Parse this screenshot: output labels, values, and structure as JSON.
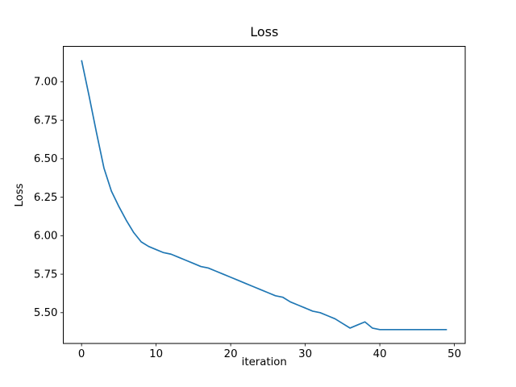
{
  "figure": {
    "background": "#ffffff",
    "spine_color": "#000000"
  },
  "chart_data": {
    "type": "line",
    "title": "Loss",
    "xlabel": "iteration",
    "ylabel": "Loss",
    "line_color": "#1f77b4",
    "grid": false,
    "x": [
      0,
      1,
      2,
      3,
      4,
      5,
      6,
      7,
      8,
      9,
      10,
      11,
      12,
      13,
      14,
      15,
      16,
      17,
      18,
      19,
      20,
      21,
      22,
      23,
      24,
      25,
      26,
      27,
      28,
      29,
      30,
      31,
      32,
      33,
      34,
      35,
      36,
      37,
      38,
      39,
      40,
      41,
      42,
      43,
      44,
      45,
      46,
      47,
      48,
      49
    ],
    "values": [
      7.14,
      6.91,
      6.67,
      6.44,
      6.29,
      6.19,
      6.1,
      6.02,
      5.96,
      5.93,
      5.91,
      5.89,
      5.88,
      5.86,
      5.84,
      5.82,
      5.8,
      5.79,
      5.77,
      5.75,
      5.73,
      5.71,
      5.69,
      5.67,
      5.65,
      5.63,
      5.61,
      5.6,
      5.57,
      5.55,
      5.53,
      5.51,
      5.5,
      5.48,
      5.46,
      5.43,
      5.4,
      5.42,
      5.44,
      5.4,
      5.39,
      5.39,
      5.39,
      5.39,
      5.39,
      5.39,
      5.39,
      5.39,
      5.39,
      5.39
    ],
    "xlim": [
      -2.45,
      51.45
    ],
    "ylim": [
      5.3,
      7.23
    ],
    "xticks": [
      {
        "value": 0,
        "label": "0"
      },
      {
        "value": 10,
        "label": "10"
      },
      {
        "value": 20,
        "label": "20"
      },
      {
        "value": 30,
        "label": "30"
      },
      {
        "value": 40,
        "label": "40"
      },
      {
        "value": 50,
        "label": "50"
      }
    ],
    "yticks": [
      {
        "value": 5.5,
        "label": "5.50"
      },
      {
        "value": 5.75,
        "label": "5.75"
      },
      {
        "value": 6.0,
        "label": "6.00"
      },
      {
        "value": 6.25,
        "label": "6.25"
      },
      {
        "value": 6.5,
        "label": "6.50"
      },
      {
        "value": 6.75,
        "label": "6.75"
      },
      {
        "value": 7.0,
        "label": "7.00"
      }
    ]
  }
}
